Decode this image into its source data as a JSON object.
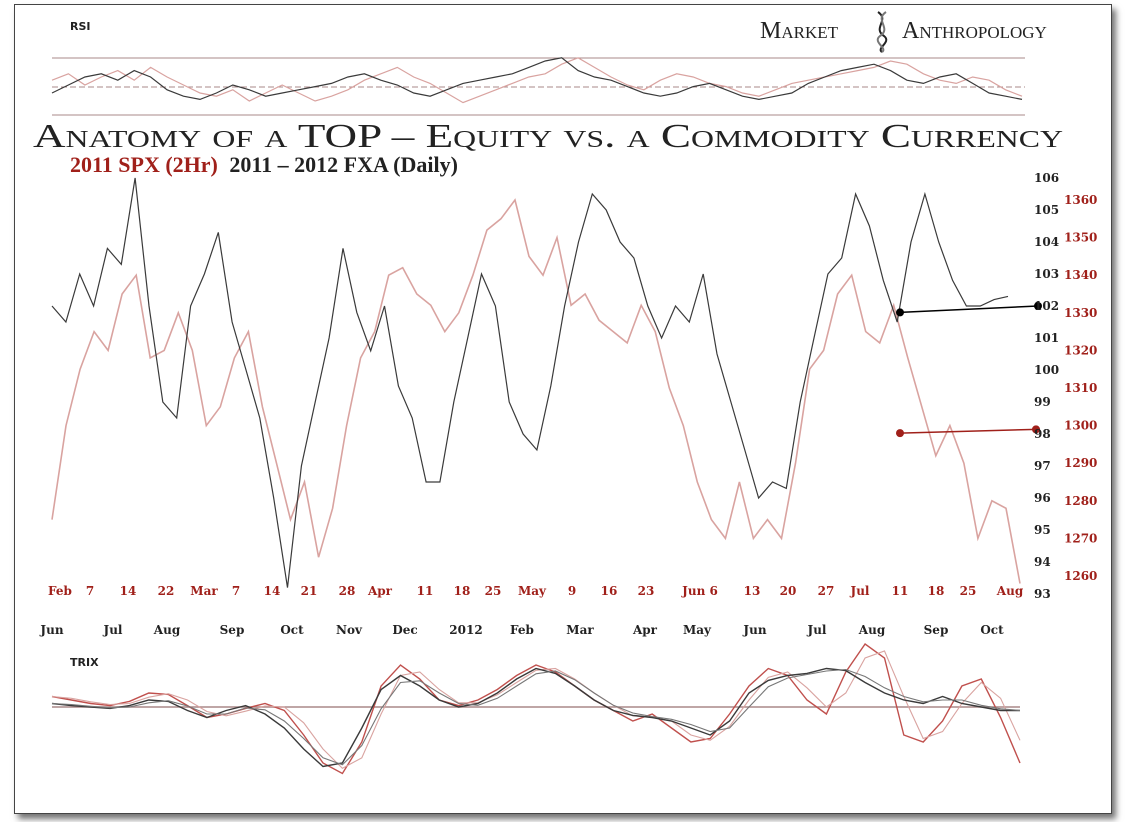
{
  "brand": {
    "word1": "Market",
    "word2": "Anthropology",
    "logo_icon": "dna-helix-icon"
  },
  "title": "Anatomy of a TOP – Equity vs. a Commodity Currency",
  "subtitle": {
    "spx_label": "2011 SPX (2Hr)",
    "fxa_label": "2011 – 2012 FXA (Daily)"
  },
  "colors": {
    "spx": "#c0504d",
    "spx_light": "#d9a3a0",
    "fxa": "#3a3a3a",
    "red_text": "#a0201a"
  },
  "chart_data": [
    {
      "type": "line",
      "panel": "RSI",
      "title": "RSI",
      "lines": "reference bands",
      "series": [
        {
          "values": [
            58,
            62,
            55,
            60,
            64,
            58,
            66,
            60,
            55,
            50,
            48,
            52,
            45,
            50,
            55,
            50,
            45,
            48,
            52,
            58,
            62,
            66,
            60,
            56,
            50,
            44,
            48,
            52,
            56,
            60,
            62,
            68,
            72,
            66,
            60,
            55,
            52,
            58,
            62,
            60,
            56,
            54,
            50,
            48,
            52,
            56,
            58,
            60,
            62,
            64,
            66,
            70,
            68,
            62,
            58,
            56,
            60,
            58,
            52,
            48
          ]
        },
        {
          "values": [
            50,
            55,
            60,
            62,
            58,
            64,
            60,
            52,
            48,
            46,
            50,
            55,
            52,
            48,
            50,
            52,
            54,
            56,
            60,
            62,
            58,
            55,
            50,
            48,
            52,
            56,
            58,
            60,
            62,
            66,
            70,
            72,
            64,
            60,
            58,
            54,
            50,
            48,
            50,
            54,
            56,
            52,
            48,
            46,
            48,
            50,
            56,
            60,
            64,
            66,
            68,
            64,
            58,
            56,
            60,
            62,
            56,
            50,
            48,
            46
          ]
        }
      ],
      "ylim": [
        30,
        80
      ]
    },
    {
      "type": "line",
      "panel": "price",
      "top_axis_labels": [
        "Feb",
        "7",
        "14",
        "22",
        "Mar",
        "7",
        "14",
        "21",
        "28",
        "Apr",
        "11",
        "18",
        "25",
        "May",
        "9",
        "16",
        "23",
        "Jun 6",
        "13",
        "20",
        "27",
        "Jul",
        "11",
        "18",
        "25",
        "Aug"
      ],
      "bottom_axis_labels": [
        "Jun",
        "Jul",
        "Aug",
        "Sep",
        "Oct",
        "Nov",
        "Dec",
        "2012",
        "Feb",
        "Mar",
        "Apr",
        "May",
        "Jun",
        "Jul",
        "Aug",
        "Sep",
        "Oct"
      ],
      "y_fxa_ticks": [
        106,
        105,
        104,
        103,
        102,
        101,
        100,
        99,
        98,
        97,
        96,
        95,
        94,
        93
      ],
      "y_spx_ticks": [
        1360,
        1350,
        1340,
        1330,
        1320,
        1310,
        1300,
        1290,
        1280,
        1270,
        1260
      ],
      "y_fxa_range": [
        93,
        106
      ],
      "y_spx_range": [
        1255,
        1367
      ],
      "series": [
        {
          "name": "2011 SPX (2Hr)",
          "axis": "spx",
          "values": [
            1275,
            1300,
            1315,
            1325,
            1320,
            1335,
            1340,
            1318,
            1320,
            1330,
            1320,
            1300,
            1305,
            1318,
            1325,
            1305,
            1290,
            1275,
            1285,
            1265,
            1278,
            1300,
            1318,
            1325,
            1340,
            1342,
            1335,
            1332,
            1325,
            1330,
            1340,
            1352,
            1355,
            1360,
            1345,
            1340,
            1350,
            1332,
            1335,
            1328,
            1325,
            1322,
            1332,
            1325,
            1310,
            1300,
            1285,
            1275,
            1270,
            1285,
            1270,
            1275,
            1270,
            1290,
            1315,
            1320,
            1335,
            1340,
            1325,
            1322,
            1332,
            1318,
            1305,
            1292,
            1300,
            1290,
            1270,
            1280,
            1278,
            1258
          ]
        },
        {
          "name": "2011 – 2012 FXA (Daily)",
          "axis": "fxa",
          "values": [
            102,
            101.5,
            103,
            102,
            103.8,
            103.3,
            106,
            102,
            99,
            98.5,
            102,
            103,
            104.3,
            101.5,
            100,
            98.5,
            96,
            93.2,
            97,
            99,
            101,
            103.8,
            101.8,
            100.6,
            102,
            99.5,
            98.5,
            96.5,
            96.5,
            99,
            101,
            103,
            102,
            99,
            98,
            97.5,
            99.5,
            102,
            104,
            105.5,
            105,
            104,
            103.5,
            102,
            101,
            102,
            101.5,
            103,
            100.5,
            99,
            97.5,
            96,
            96.5,
            96.3,
            99,
            101,
            103,
            103.5,
            105.5,
            104.5,
            102.8,
            101.5,
            104,
            105.5,
            104,
            102.8,
            102,
            102,
            102.2,
            102.3
          ]
        }
      ],
      "annotations": [
        {
          "color": "black",
          "from_fxa": 101.8,
          "to_fxa": 102
        },
        {
          "color": "red",
          "from_spx": 1298,
          "to_spx": 1299
        }
      ]
    },
    {
      "type": "line",
      "panel": "TRIX",
      "title": "TRIX",
      "series": [
        {
          "values": [
            0.15,
            0.1,
            0.05,
            0.02,
            0.08,
            0.2,
            0.18,
            0.02,
            -0.15,
            -0.1,
            -0.02,
            0.05,
            -0.05,
            -0.4,
            -0.8,
            -0.95,
            -0.5,
            0.3,
            0.6,
            0.4,
            0.1,
            0.02,
            0.1,
            0.25,
            0.45,
            0.6,
            0.5,
            0.3,
            0.1,
            -0.05,
            -0.2,
            -0.1,
            -0.3,
            -0.5,
            -0.45,
            -0.1,
            0.3,
            0.55,
            0.45,
            0.1,
            -0.1,
            0.5,
            0.9,
            0.7,
            -0.4,
            -0.5,
            -0.2,
            0.3,
            0.4,
            -0.15,
            -0.8
          ]
        },
        {
          "values": [
            0.05,
            0.02,
            0.0,
            -0.02,
            0.02,
            0.1,
            0.08,
            -0.05,
            -0.15,
            -0.05,
            0.02,
            -0.1,
            -0.3,
            -0.6,
            -0.85,
            -0.8,
            -0.3,
            0.25,
            0.45,
            0.3,
            0.1,
            0.0,
            0.05,
            0.2,
            0.4,
            0.55,
            0.48,
            0.3,
            0.1,
            -0.05,
            -0.12,
            -0.15,
            -0.2,
            -0.3,
            -0.4,
            -0.2,
            0.2,
            0.38,
            0.45,
            0.48,
            0.55,
            0.52,
            0.35,
            0.2,
            0.1,
            0.05,
            0.15,
            0.05,
            0.0,
            -0.05,
            -0.05
          ]
        }
      ]
    }
  ]
}
